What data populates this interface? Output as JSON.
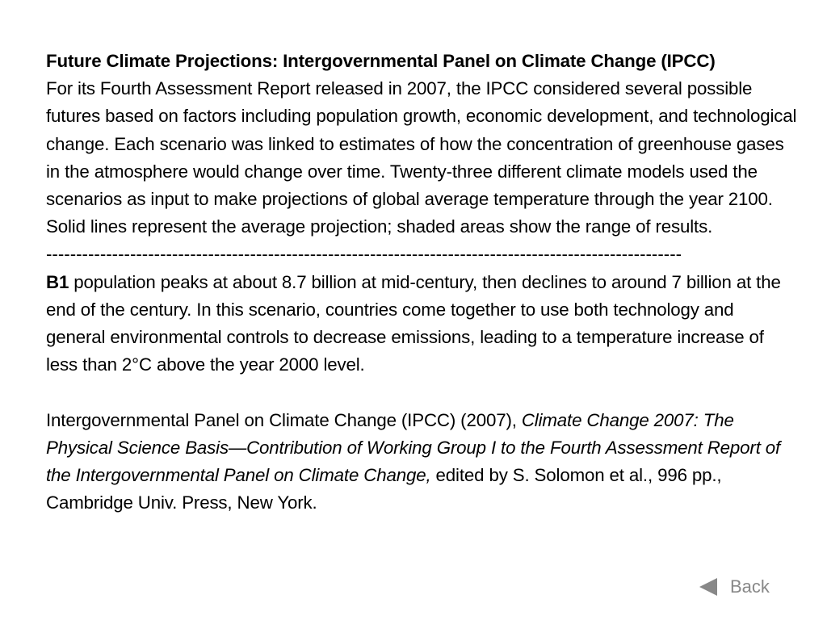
{
  "title": "Future Climate Projections: Intergovernmental Panel on Climate Change (IPCC)",
  "intro": "For its Fourth Assessment Report released in 2007, the IPCC considered several possible futures based on factors including population growth, economic development, and technological change. Each scenario was linked to estimates of how the concentration of greenhouse gases in the atmosphere would change over time. Twenty-three different climate models used the scenarios as input to make projections of global average temperature through the year 2100. Solid lines represent the average projection; shaded areas show the range of results.",
  "divider": "----------------------------------------------------------------------------------------------------------",
  "scenario": {
    "label": "B1",
    "text": " population peaks at about 8.7 billion at mid-century, then declines to around 7 billion at the end of the century. In this scenario, countries come together to use both technology and general environmental controls to decrease emissions, leading to a temperature increase of less than 2°C above the year 2000 level."
  },
  "citation": {
    "prefix": "Intergovernmental Panel on Climate Change (IPCC) (2007), ",
    "italic": "Climate Change 2007: The Physical Science Basis—Contribution of Working Group I to the Fourth Assessment Report of the Intergovernmental Panel on Climate Change,",
    "suffix": " edited by S. Solomon et al., 996 pp., Cambridge Univ. Press, New York."
  },
  "nav": {
    "back_label": "Back",
    "back_icon": "left-triangle-icon"
  },
  "colors": {
    "text": "#000000",
    "nav": "#888888",
    "background": "#ffffff"
  }
}
